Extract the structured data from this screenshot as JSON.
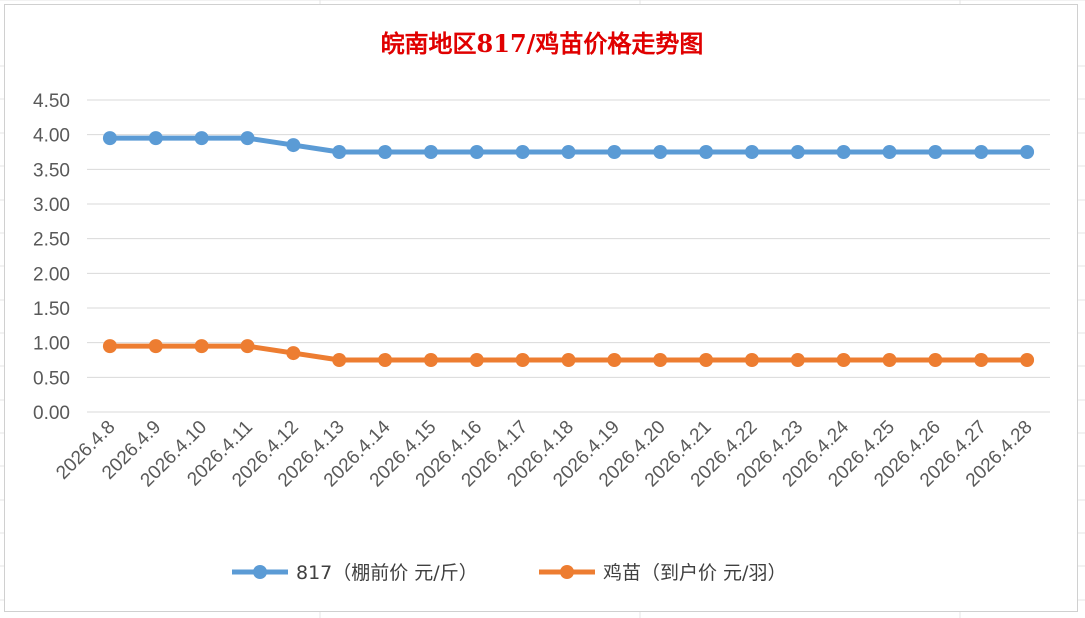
{
  "chart_data": {
    "type": "line",
    "title": "皖南地区817/鸡苗价格走势图",
    "categories": [
      "2026.4.8",
      "2026.4.9",
      "2026.4.10",
      "2026.4.11",
      "2026.4.12",
      "2026.4.13",
      "2026.4.14",
      "2026.4.15",
      "2026.4.16",
      "2026.4.17",
      "2026.4.18",
      "2026.4.19",
      "2026.4.20",
      "2026.4.21",
      "2026.4.22",
      "2026.4.23",
      "2026.4.24",
      "2026.4.25",
      "2026.4.26",
      "2026.4.27",
      "2026.4.28"
    ],
    "series": [
      {
        "name": "817（棚前价 元/斤）",
        "color": "#5b9bd5",
        "values": [
          3.95,
          3.95,
          3.95,
          3.95,
          3.85,
          3.75,
          3.75,
          3.75,
          3.75,
          3.75,
          3.75,
          3.75,
          3.75,
          3.75,
          3.75,
          3.75,
          3.75,
          3.75,
          3.75,
          3.75,
          3.75
        ]
      },
      {
        "name": "鸡苗（到户价 元/羽）",
        "color": "#ed7d31",
        "values": [
          0.95,
          0.95,
          0.95,
          0.95,
          0.85,
          0.75,
          0.75,
          0.75,
          0.75,
          0.75,
          0.75,
          0.75,
          0.75,
          0.75,
          0.75,
          0.75,
          0.75,
          0.75,
          0.75,
          0.75,
          0.75
        ]
      }
    ],
    "yticks": [
      "0.00",
      "0.50",
      "1.00",
      "1.50",
      "2.00",
      "2.50",
      "3.00",
      "3.50",
      "4.00",
      "4.50"
    ],
    "ylim": [
      0,
      4.5
    ],
    "grid": true,
    "legend": "bottom",
    "title_color": "#e00000"
  }
}
